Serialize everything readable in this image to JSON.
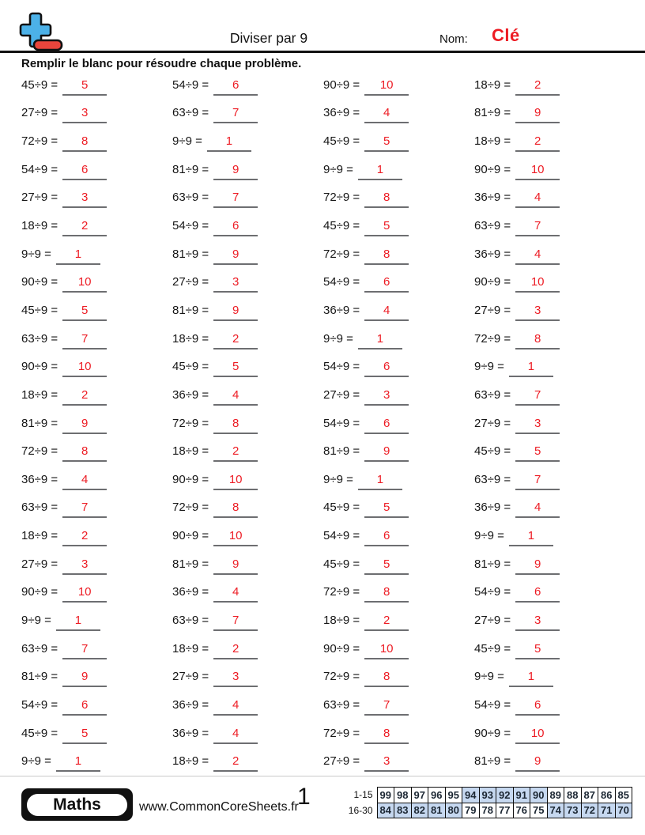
{
  "colors": {
    "accent_red": "#ed1c24",
    "grading_cell_blue": "#c6d8f0",
    "logo_blue": "#4cb1e8",
    "logo_red": "#e8453c",
    "underline_gray": "#6d6e71"
  },
  "header": {
    "title": "Diviser par 9",
    "name_label": "Nom:",
    "name_value": "Clé",
    "instruction": "Remplir le blanc pour résoudre chaque problème."
  },
  "problems": [
    {
      "q": "45÷9 =",
      "a": "5"
    },
    {
      "q": "54÷9 =",
      "a": "6"
    },
    {
      "q": "90÷9 =",
      "a": "10"
    },
    {
      "q": "18÷9 =",
      "a": "2"
    },
    {
      "q": "27÷9 =",
      "a": "3"
    },
    {
      "q": "63÷9 =",
      "a": "7"
    },
    {
      "q": "36÷9 =",
      "a": "4"
    },
    {
      "q": "81÷9 =",
      "a": "9"
    },
    {
      "q": "72÷9 =",
      "a": "8"
    },
    {
      "q": "9÷9 =",
      "a": "1"
    },
    {
      "q": "45÷9 =",
      "a": "5"
    },
    {
      "q": "18÷9 =",
      "a": "2"
    },
    {
      "q": "54÷9 =",
      "a": "6"
    },
    {
      "q": "81÷9 =",
      "a": "9"
    },
    {
      "q": "9÷9 =",
      "a": "1"
    },
    {
      "q": "90÷9 =",
      "a": "10"
    },
    {
      "q": "27÷9 =",
      "a": "3"
    },
    {
      "q": "63÷9 =",
      "a": "7"
    },
    {
      "q": "72÷9 =",
      "a": "8"
    },
    {
      "q": "36÷9 =",
      "a": "4"
    },
    {
      "q": "18÷9 =",
      "a": "2"
    },
    {
      "q": "54÷9 =",
      "a": "6"
    },
    {
      "q": "45÷9 =",
      "a": "5"
    },
    {
      "q": "63÷9 =",
      "a": "7"
    },
    {
      "q": "9÷9 =",
      "a": "1"
    },
    {
      "q": "81÷9 =",
      "a": "9"
    },
    {
      "q": "72÷9 =",
      "a": "8"
    },
    {
      "q": "36÷9 =",
      "a": "4"
    },
    {
      "q": "90÷9 =",
      "a": "10"
    },
    {
      "q": "27÷9 =",
      "a": "3"
    },
    {
      "q": "54÷9 =",
      "a": "6"
    },
    {
      "q": "90÷9 =",
      "a": "10"
    },
    {
      "q": "45÷9 =",
      "a": "5"
    },
    {
      "q": "81÷9 =",
      "a": "9"
    },
    {
      "q": "36÷9 =",
      "a": "4"
    },
    {
      "q": "27÷9 =",
      "a": "3"
    },
    {
      "q": "63÷9 =",
      "a": "7"
    },
    {
      "q": "18÷9 =",
      "a": "2"
    },
    {
      "q": "9÷9 =",
      "a": "1"
    },
    {
      "q": "72÷9 =",
      "a": "8"
    },
    {
      "q": "90÷9 =",
      "a": "10"
    },
    {
      "q": "45÷9 =",
      "a": "5"
    },
    {
      "q": "54÷9 =",
      "a": "6"
    },
    {
      "q": "9÷9 =",
      "a": "1"
    },
    {
      "q": "18÷9 =",
      "a": "2"
    },
    {
      "q": "36÷9 =",
      "a": "4"
    },
    {
      "q": "27÷9 =",
      "a": "3"
    },
    {
      "q": "63÷9 =",
      "a": "7"
    },
    {
      "q": "81÷9 =",
      "a": "9"
    },
    {
      "q": "72÷9 =",
      "a": "8"
    },
    {
      "q": "54÷9 =",
      "a": "6"
    },
    {
      "q": "27÷9 =",
      "a": "3"
    },
    {
      "q": "72÷9 =",
      "a": "8"
    },
    {
      "q": "18÷9 =",
      "a": "2"
    },
    {
      "q": "81÷9 =",
      "a": "9"
    },
    {
      "q": "45÷9 =",
      "a": "5"
    },
    {
      "q": "36÷9 =",
      "a": "4"
    },
    {
      "q": "90÷9 =",
      "a": "10"
    },
    {
      "q": "9÷9 =",
      "a": "1"
    },
    {
      "q": "63÷9 =",
      "a": "7"
    },
    {
      "q": "63÷9 =",
      "a": "7"
    },
    {
      "q": "72÷9 =",
      "a": "8"
    },
    {
      "q": "45÷9 =",
      "a": "5"
    },
    {
      "q": "36÷9 =",
      "a": "4"
    },
    {
      "q": "18÷9 =",
      "a": "2"
    },
    {
      "q": "90÷9 =",
      "a": "10"
    },
    {
      "q": "54÷9 =",
      "a": "6"
    },
    {
      "q": "9÷9 =",
      "a": "1"
    },
    {
      "q": "27÷9 =",
      "a": "3"
    },
    {
      "q": "81÷9 =",
      "a": "9"
    },
    {
      "q": "45÷9 =",
      "a": "5"
    },
    {
      "q": "81÷9 =",
      "a": "9"
    },
    {
      "q": "90÷9 =",
      "a": "10"
    },
    {
      "q": "36÷9 =",
      "a": "4"
    },
    {
      "q": "72÷9 =",
      "a": "8"
    },
    {
      "q": "54÷9 =",
      "a": "6"
    },
    {
      "q": "9÷9 =",
      "a": "1"
    },
    {
      "q": "63÷9 =",
      "a": "7"
    },
    {
      "q": "18÷9 =",
      "a": "2"
    },
    {
      "q": "27÷9 =",
      "a": "3"
    },
    {
      "q": "63÷9 =",
      "a": "7"
    },
    {
      "q": "18÷9 =",
      "a": "2"
    },
    {
      "q": "90÷9 =",
      "a": "10"
    },
    {
      "q": "45÷9 =",
      "a": "5"
    },
    {
      "q": "81÷9 =",
      "a": "9"
    },
    {
      "q": "27÷9 =",
      "a": "3"
    },
    {
      "q": "72÷9 =",
      "a": "8"
    },
    {
      "q": "9÷9 =",
      "a": "1"
    },
    {
      "q": "54÷9 =",
      "a": "6"
    },
    {
      "q": "36÷9 =",
      "a": "4"
    },
    {
      "q": "63÷9 =",
      "a": "7"
    },
    {
      "q": "54÷9 =",
      "a": "6"
    },
    {
      "q": "45÷9 =",
      "a": "5"
    },
    {
      "q": "36÷9 =",
      "a": "4"
    },
    {
      "q": "72÷9 =",
      "a": "8"
    },
    {
      "q": "90÷9 =",
      "a": "10"
    },
    {
      "q": "9÷9 =",
      "a": "1"
    },
    {
      "q": "18÷9 =",
      "a": "2"
    },
    {
      "q": "27÷9 =",
      "a": "3"
    },
    {
      "q": "81÷9 =",
      "a": "9"
    }
  ],
  "footer": {
    "subject_badge": "Maths",
    "website": "www.CommonCoreSheets.fr",
    "page_number": "1",
    "grading_rows": [
      {
        "label": "1-15",
        "cells": [
          {
            "value": "99",
            "shaded": false
          },
          {
            "value": "98",
            "shaded": false
          },
          {
            "value": "97",
            "shaded": false
          },
          {
            "value": "96",
            "shaded": false
          },
          {
            "value": "95",
            "shaded": false
          },
          {
            "value": "94",
            "shaded": true
          },
          {
            "value": "93",
            "shaded": true
          },
          {
            "value": "92",
            "shaded": true
          },
          {
            "value": "91",
            "shaded": true
          },
          {
            "value": "90",
            "shaded": true
          },
          {
            "value": "89",
            "shaded": false
          },
          {
            "value": "88",
            "shaded": false
          },
          {
            "value": "87",
            "shaded": false
          },
          {
            "value": "86",
            "shaded": false
          },
          {
            "value": "85",
            "shaded": false
          }
        ]
      },
      {
        "label": "16-30",
        "cells": [
          {
            "value": "84",
            "shaded": true
          },
          {
            "value": "83",
            "shaded": true
          },
          {
            "value": "82",
            "shaded": true
          },
          {
            "value": "81",
            "shaded": true
          },
          {
            "value": "80",
            "shaded": true
          },
          {
            "value": "79",
            "shaded": false
          },
          {
            "value": "78",
            "shaded": false
          },
          {
            "value": "77",
            "shaded": false
          },
          {
            "value": "76",
            "shaded": false
          },
          {
            "value": "75",
            "shaded": false
          },
          {
            "value": "74",
            "shaded": true
          },
          {
            "value": "73",
            "shaded": true
          },
          {
            "value": "72",
            "shaded": true
          },
          {
            "value": "71",
            "shaded": true
          },
          {
            "value": "70",
            "shaded": true
          }
        ]
      }
    ]
  }
}
